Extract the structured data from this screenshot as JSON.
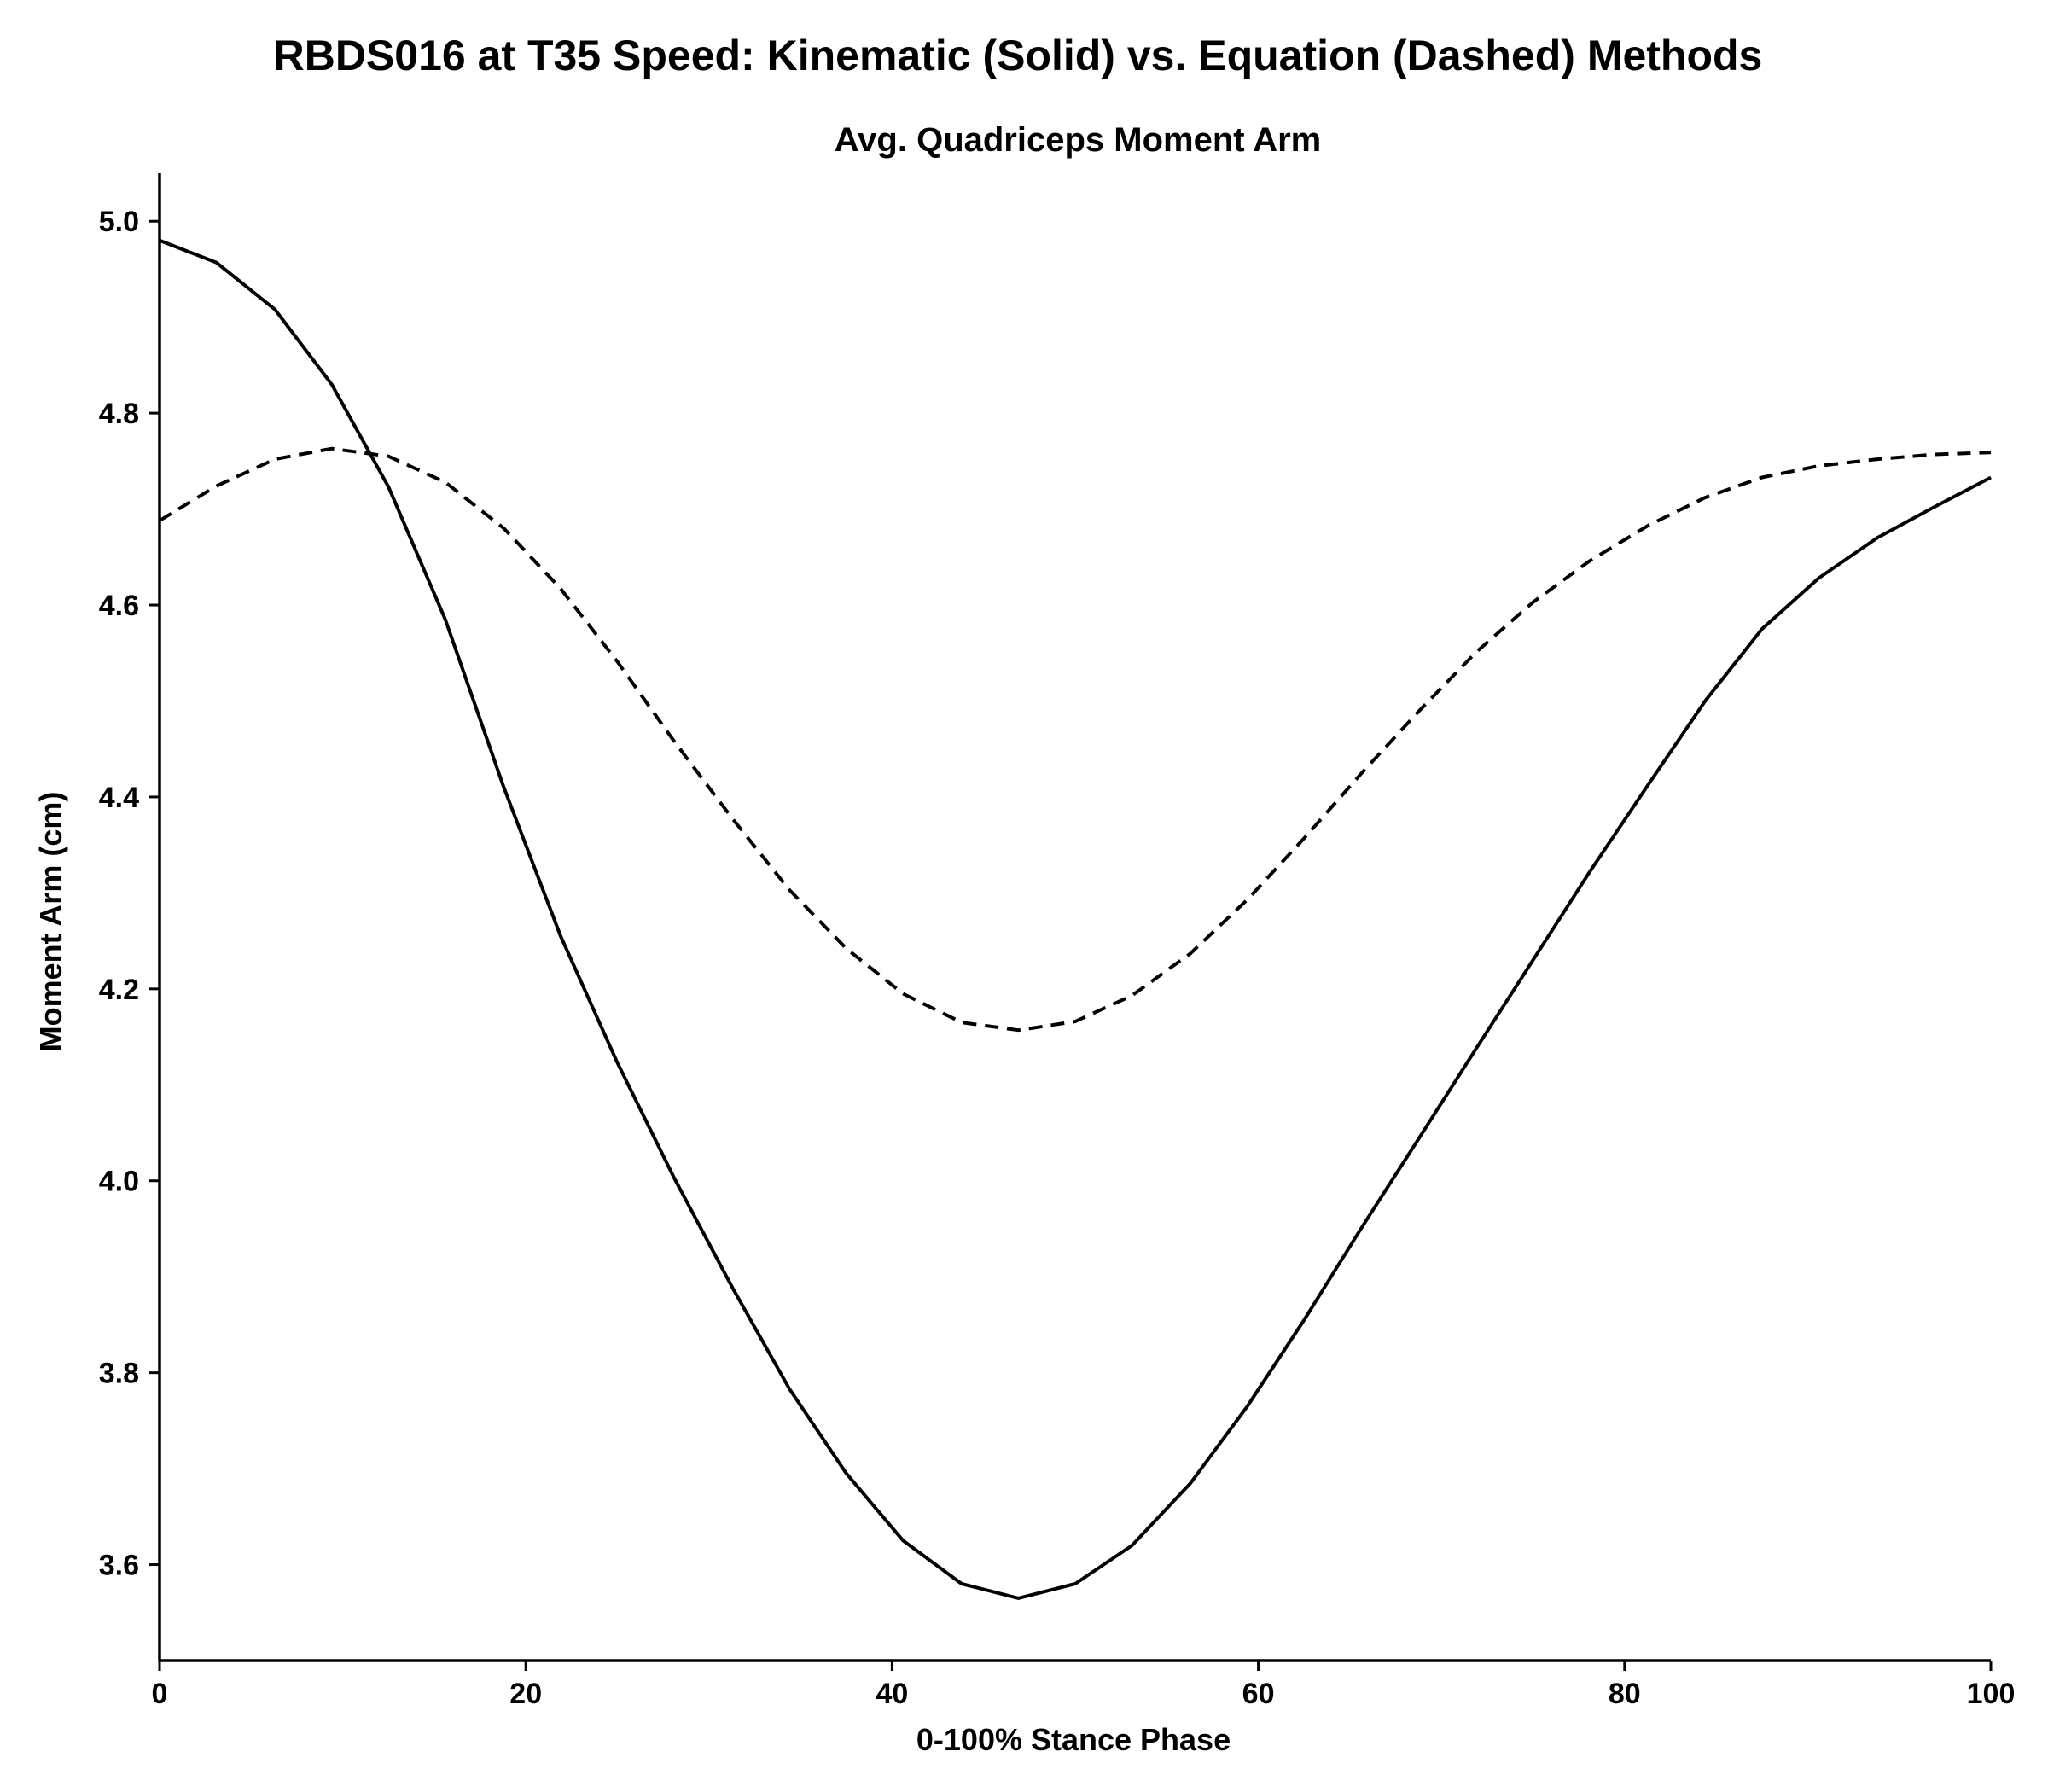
{
  "chart_data": {
    "type": "line",
    "title": "RBDS016 at T35 Speed: Kinematic (Solid) vs. Equation (Dashed) Methods",
    "subtitle": "Avg. Quadriceps Moment Arm",
    "xlabel": "0-100% Stance Phase",
    "ylabel": "Moment Arm (cm)",
    "xlim": [
      0,
      100
    ],
    "ylim": [
      3.5,
      5.05
    ],
    "xticks": [
      0,
      20,
      40,
      60,
      80,
      100
    ],
    "xtick_labels": [
      "0",
      "20",
      "40",
      "60",
      "80",
      "100"
    ],
    "yticks": [
      3.6,
      3.8,
      4.0,
      4.2,
      4.4,
      4.6,
      4.8,
      5.0
    ],
    "ytick_labels": [
      "3.6",
      "3.8",
      "4.0",
      "4.2",
      "4.4",
      "4.6",
      "4.8",
      "5.0"
    ],
    "grid": false,
    "series": [
      {
        "style": "solid",
        "color": "#000000",
        "x": [
          0,
          3.1,
          6.3,
          9.4,
          12.5,
          15.6,
          18.8,
          21.9,
          25.0,
          28.1,
          31.3,
          34.4,
          37.5,
          40.6,
          43.8,
          46.9,
          50.0,
          53.1,
          56.3,
          59.4,
          62.5,
          65.6,
          68.8,
          71.9,
          75.0,
          78.1,
          81.3,
          84.4,
          87.5,
          90.6,
          93.8,
          96.9,
          100
        ],
        "values": [
          4.98,
          4.957,
          4.908,
          4.83,
          4.723,
          4.585,
          4.41,
          4.255,
          4.123,
          4.003,
          3.888,
          3.783,
          3.695,
          3.625,
          3.58,
          3.565,
          3.58,
          3.62,
          3.685,
          3.765,
          3.855,
          3.95,
          4.045,
          4.138,
          4.23,
          4.322,
          4.413,
          4.5,
          4.575,
          4.628,
          4.67,
          4.702,
          4.733
        ]
      },
      {
        "style": "dashed",
        "color": "#000000",
        "x": [
          0,
          3.1,
          6.3,
          9.4,
          12.5,
          15.6,
          18.8,
          21.9,
          25.0,
          28.1,
          31.3,
          34.4,
          37.5,
          40.6,
          43.8,
          46.9,
          50.0,
          53.1,
          56.3,
          59.4,
          62.5,
          65.6,
          68.8,
          71.9,
          75.0,
          78.1,
          81.3,
          84.4,
          87.5,
          90.6,
          93.8,
          96.9,
          100
        ],
        "values": [
          4.688,
          4.724,
          4.752,
          4.763,
          4.755,
          4.728,
          4.68,
          4.617,
          4.541,
          4.458,
          4.377,
          4.303,
          4.242,
          4.195,
          4.165,
          4.157,
          4.166,
          4.193,
          4.237,
          4.293,
          4.357,
          4.424,
          4.49,
          4.551,
          4.603,
          4.646,
          4.683,
          4.712,
          4.733,
          4.745,
          4.752,
          4.757,
          4.759
        ]
      }
    ]
  }
}
